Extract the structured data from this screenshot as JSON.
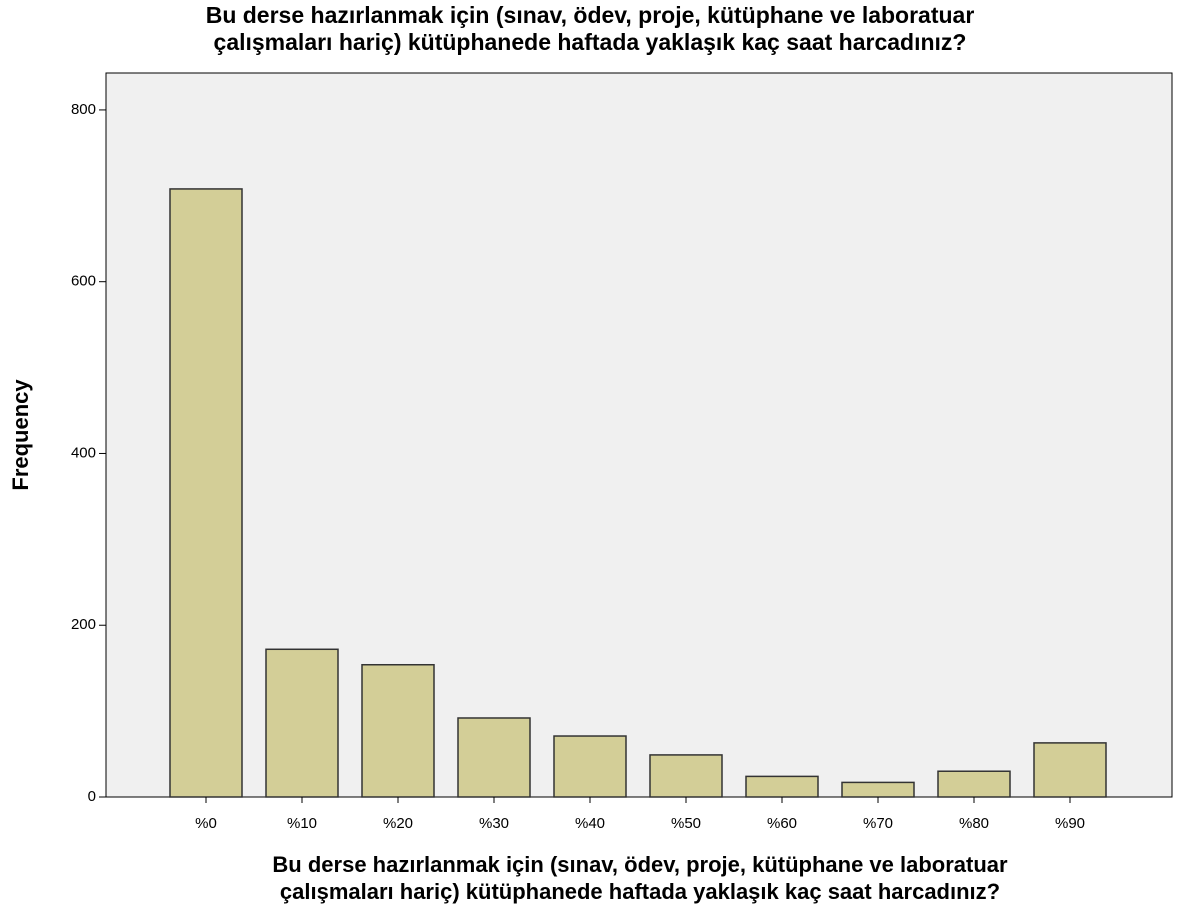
{
  "chart_data": {
    "type": "bar",
    "title": [
      "Bu derse hazırlanmak için (sınav, ödev, proje, kütüphane ve laboratuar",
      "çalışmaları hariç) kütüphanede haftada yaklaşık kaç saat harcadınız?"
    ],
    "x_label": [
      "Bu derse hazırlanmak için (sınav, ödev, proje, kütüphane ve laboratuar",
      "çalışmaları hariç) kütüphanede haftada yaklaşık kaç saat harcadınız?"
    ],
    "y_label": "Frequency",
    "categories": [
      "%0",
      "%10",
      "%20",
      "%30",
      "%40",
      "%50",
      "%60",
      "%70",
      "%80",
      "%90"
    ],
    "values": [
      708,
      172,
      154,
      92,
      71,
      49,
      24,
      17,
      30,
      63
    ],
    "color": "#d3ce97",
    "ylim": [
      0,
      843
    ],
    "yticks": [
      0,
      200,
      400,
      600,
      800
    ],
    "grid": false
  }
}
